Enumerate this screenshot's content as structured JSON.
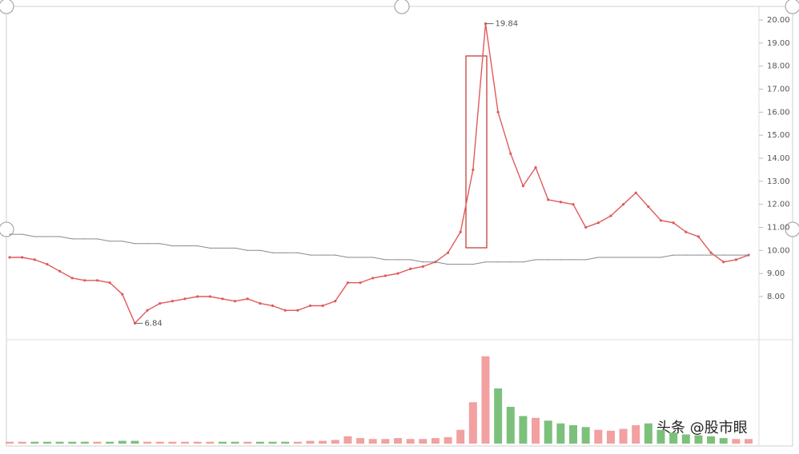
{
  "chart_data": {
    "type": "line",
    "ylim": [
      6.3,
      20.0
    ],
    "yticks": [
      {
        "value": 20,
        "label": "20.00"
      },
      {
        "value": 19,
        "label": "19.00"
      },
      {
        "value": 18,
        "label": "18.00"
      },
      {
        "value": 17,
        "label": "17.00"
      },
      {
        "value": 16,
        "label": "16.00"
      },
      {
        "value": 15,
        "label": "15.00"
      },
      {
        "value": 14,
        "label": "14.00"
      },
      {
        "value": 13,
        "label": "13.00"
      },
      {
        "value": 12,
        "label": "12.00"
      },
      {
        "value": 11,
        "label": "11.00"
      },
      {
        "value": 10,
        "label": "10.00"
      },
      {
        "value": 9,
        "label": "9.00"
      },
      {
        "value": 8,
        "label": "8.00"
      }
    ],
    "grid": false,
    "series": [
      {
        "color": "#e05a5a",
        "values": [
          9.7,
          9.7,
          9.6,
          9.4,
          9.1,
          8.8,
          8.7,
          8.7,
          8.6,
          8.1,
          6.84,
          7.4,
          7.7,
          7.8,
          7.9,
          8.0,
          8.0,
          7.9,
          7.8,
          7.9,
          7.7,
          7.6,
          7.4,
          7.4,
          7.6,
          7.6,
          7.8,
          8.6,
          8.6,
          8.8,
          8.9,
          9.0,
          9.2,
          9.3,
          9.5,
          9.9,
          10.8,
          13.5,
          19.84,
          16.0,
          14.2,
          12.8,
          13.6,
          12.2,
          12.1,
          12.0,
          11.0,
          11.2,
          11.5,
          12.0,
          12.5,
          11.9,
          11.3,
          11.2,
          10.8,
          10.6,
          9.9,
          9.5,
          9.6,
          9.8
        ]
      },
      {
        "color": "#8a8a8a",
        "values": [
          10.7,
          10.7,
          10.6,
          10.6,
          10.6,
          10.5,
          10.5,
          10.5,
          10.4,
          10.4,
          10.3,
          10.3,
          10.3,
          10.2,
          10.2,
          10.2,
          10.1,
          10.1,
          10.1,
          10.0,
          10.0,
          9.9,
          9.9,
          9.9,
          9.8,
          9.8,
          9.8,
          9.7,
          9.7,
          9.7,
          9.6,
          9.6,
          9.6,
          9.5,
          9.5,
          9.4,
          9.4,
          9.4,
          9.5,
          9.5,
          9.5,
          9.5,
          9.6,
          9.6,
          9.6,
          9.6,
          9.6,
          9.7,
          9.7,
          9.7,
          9.7,
          9.7,
          9.7,
          9.8,
          9.8,
          9.8,
          9.8,
          9.8,
          9.8,
          9.8
        ]
      }
    ],
    "peak_label": "19.84",
    "low_label": "6.84",
    "volume": {
      "vlim": [
        0,
        100
      ],
      "values": [
        2,
        2,
        2,
        2,
        2,
        2,
        2,
        2,
        2,
        3,
        3,
        2,
        2,
        2,
        2,
        2,
        2,
        2,
        2,
        2,
        2,
        2,
        2,
        2,
        3,
        3,
        4,
        8,
        6,
        5,
        5,
        6,
        5,
        5,
        6,
        7,
        15,
        45,
        95,
        60,
        40,
        30,
        28,
        25,
        22,
        20,
        18,
        15,
        14,
        16,
        20,
        22,
        15,
        12,
        10,
        9,
        8,
        6,
        5,
        5
      ]
    },
    "watermark": "头条 @股市眼"
  }
}
